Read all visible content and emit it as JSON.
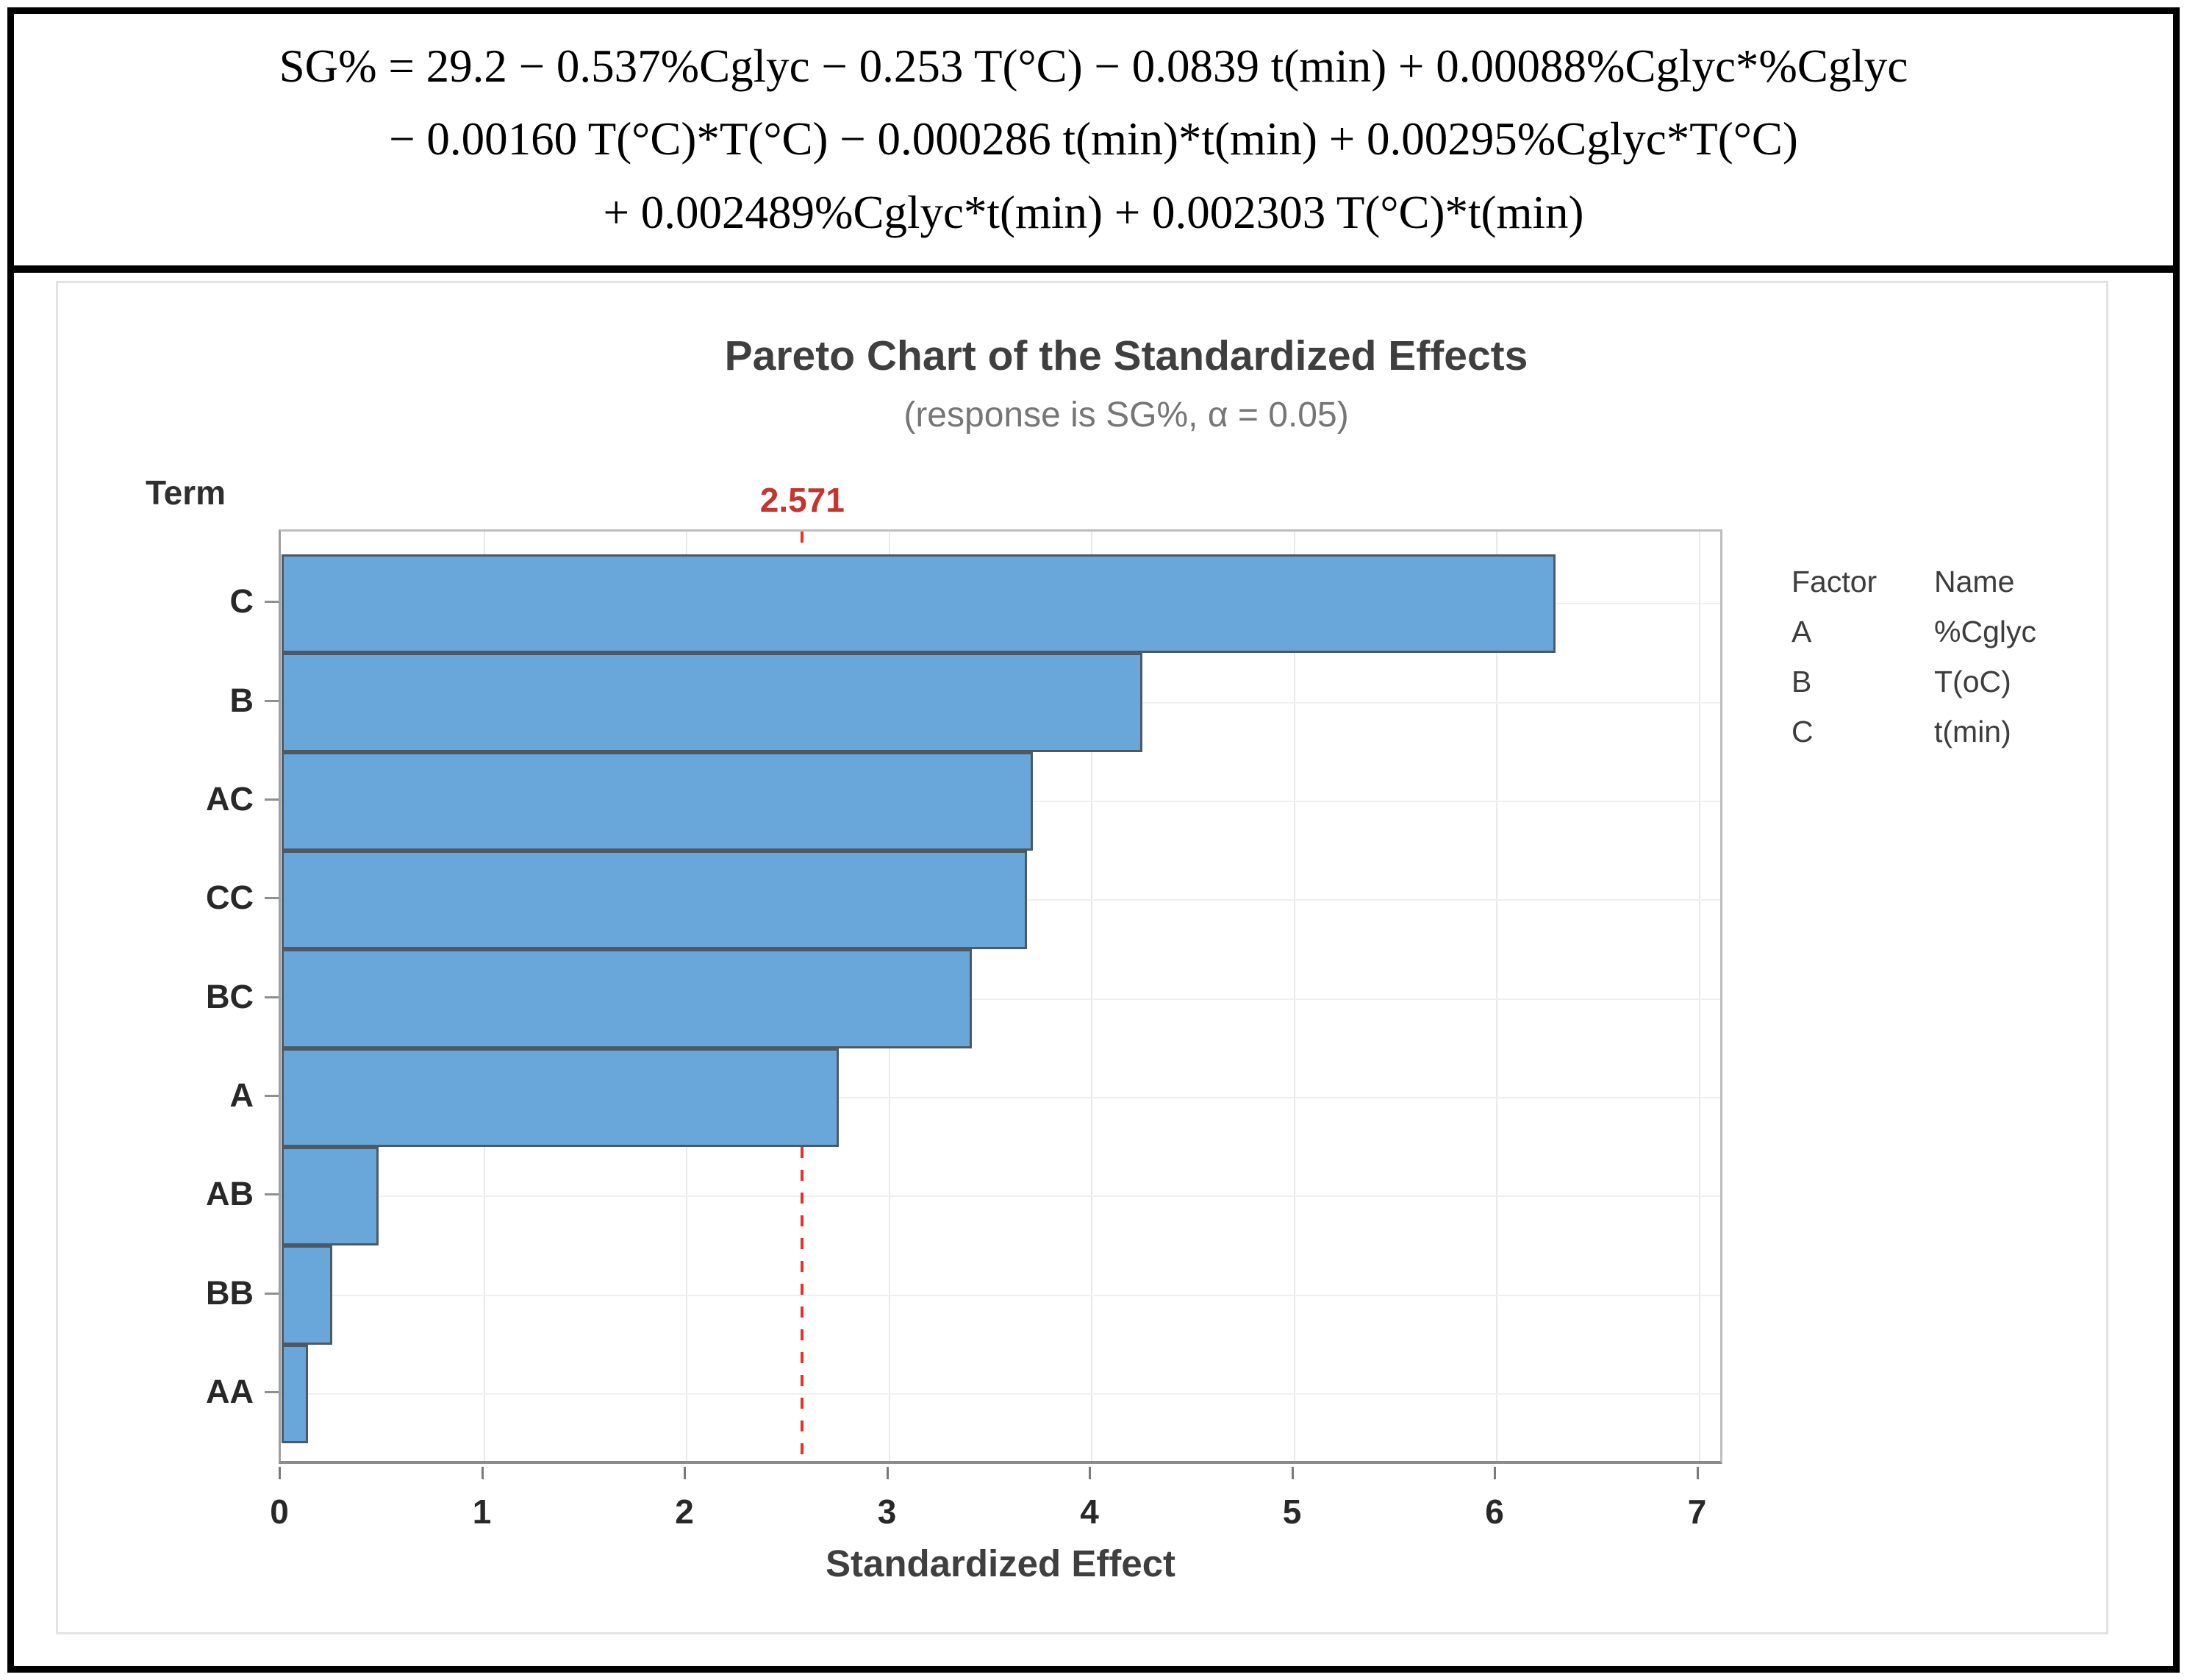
{
  "equation": {
    "line1": "SG% = 29.2 − 0.537%Cglyc − 0.253 T(°C) − 0.0839 t(min) + 0.00088%Cglyc*%Cglyc",
    "line2": "− 0.00160 T(°C)*T(°C) − 0.000286 t(min)*t(min) + 0.00295%Cglyc*T(°C)",
    "line3": "+ 0.002489%Cglyc*t(min) + 0.002303 T(°C)*t(min)"
  },
  "chart_data": {
    "type": "bar",
    "orientation": "horizontal",
    "title": "Pareto Chart of the Standardized Effects",
    "subtitle": "(response is SG%, α = 0.05)",
    "term_axis_title": "Term",
    "xlabel": "Standardized Effect",
    "categories": [
      "C",
      "B",
      "AC",
      "CC",
      "BC",
      "A",
      "AB",
      "BB",
      "AA"
    ],
    "values": [
      6.29,
      4.25,
      3.71,
      3.68,
      3.41,
      2.75,
      0.48,
      0.25,
      0.13
    ],
    "x_ticks": [
      0,
      1,
      2,
      3,
      4,
      5,
      6,
      7
    ],
    "xlim": [
      0,
      7.12
    ],
    "grid": true,
    "reference_line": {
      "value": 2.571,
      "label": "2.571"
    },
    "bar_color": "#69a7da",
    "bar_border_color": "#4d5a66",
    "reference_line_color": "#ed3024",
    "reference_label_color": "#c5342d"
  },
  "legend": {
    "headers": [
      "Factor",
      "Name"
    ],
    "rows": [
      [
        "A",
        "%Cglyc"
      ],
      [
        "B",
        "T(oC)"
      ],
      [
        "C",
        "t(min)"
      ]
    ]
  }
}
